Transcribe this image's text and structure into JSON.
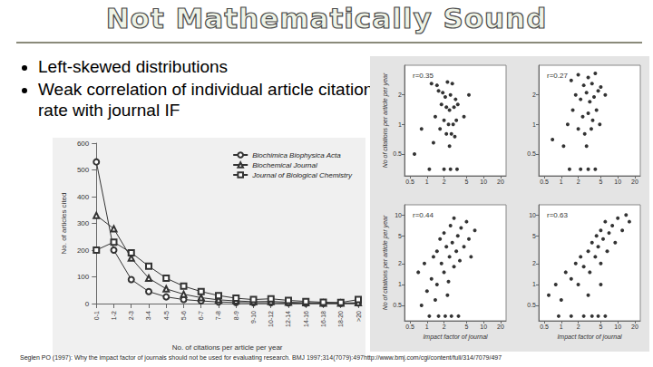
{
  "slide": {
    "title": "Not Mathematically Sound",
    "bullets": [
      "Left-skewed distributions",
      "Weak correlation of individual article citation rate with journal IF"
    ],
    "citation": "Seglen PO (1997): Why the impact factor of journals should not be used for evaluating research. BMJ 1997;314(7079):497http://www.bmj.com/cgi/content/full/314/7079/497"
  },
  "chart_data": [
    {
      "type": "line",
      "x_label": "No. of citations per article per year",
      "y_label": "No. of articles cited",
      "categories": [
        "0-1",
        "1-2",
        "2-3",
        "3-4",
        "4-5",
        "5-6",
        "6-7",
        "7-8",
        "8-9",
        "9-10",
        "10-12",
        "12-14",
        "14-16",
        "16-18",
        "18-20",
        ">20"
      ],
      "series": [
        {
          "name": "Biochimica Biophysica Acta",
          "color": "#333333",
          "marker": "circle",
          "values": [
            530,
            200,
            90,
            45,
            25,
            15,
            10,
            6,
            4,
            3,
            3,
            2,
            1,
            1,
            1,
            2
          ]
        },
        {
          "name": "Biochemical Journal",
          "color": "#333333",
          "marker": "triangle",
          "values": [
            330,
            280,
            170,
            95,
            55,
            35,
            22,
            14,
            10,
            7,
            8,
            5,
            3,
            2,
            2,
            3
          ]
        },
        {
          "name": "Journal of Biological Chemistry",
          "color": "#333333",
          "marker": "square",
          "values": [
            200,
            230,
            190,
            140,
            95,
            65,
            45,
            30,
            20,
            15,
            18,
            12,
            8,
            5,
            4,
            15
          ]
        }
      ],
      "ylim": [
        0,
        600
      ],
      "yticks": [
        0,
        100,
        200,
        300,
        400,
        500,
        600
      ],
      "legend": "top-right",
      "grid": false
    },
    {
      "type": "scatter",
      "annotation": "r=0.35",
      "y_label": "No of citations per article per year",
      "log": true,
      "color": "#000000",
      "marker": "circle",
      "grid": false,
      "xlim": [
        0.4,
        25
      ],
      "xticks": [
        0.5,
        1,
        2,
        5,
        10,
        20
      ],
      "ylim": [
        0.3,
        4
      ],
      "yticks": [
        0.5,
        1,
        2
      ],
      "points": [
        [
          1.2,
          2.6
        ],
        [
          1.5,
          2.5
        ],
        [
          2.3,
          2.7
        ],
        [
          2.8,
          2.6
        ],
        [
          1.6,
          2.2
        ],
        [
          1.9,
          2.1
        ],
        [
          2.1,
          1.9
        ],
        [
          2.6,
          2.0
        ],
        [
          3.2,
          1.8
        ],
        [
          1.8,
          1.6
        ],
        [
          2.2,
          1.5
        ],
        [
          2.5,
          1.4
        ],
        [
          3.0,
          1.5
        ],
        [
          3.5,
          1.6
        ],
        [
          1.4,
          1.2
        ],
        [
          2.0,
          1.1
        ],
        [
          2.4,
          1.0
        ],
        [
          2.9,
          1.0
        ],
        [
          3.3,
          1.1
        ],
        [
          1.7,
          0.9
        ],
        [
          2.2,
          0.8
        ],
        [
          2.7,
          0.8
        ],
        [
          3.1,
          0.75
        ],
        [
          0.8,
          0.9
        ],
        [
          1.3,
          0.65
        ],
        [
          2.5,
          0.6
        ],
        [
          0.6,
          0.5
        ],
        [
          4.5,
          1.2
        ],
        [
          5.5,
          2.0
        ],
        [
          1.1,
          0.35
        ],
        [
          2.0,
          0.35
        ],
        [
          2.6,
          0.35
        ],
        [
          3.4,
          0.35
        ]
      ]
    },
    {
      "type": "scatter",
      "annotation": "r=0.27",
      "log": true,
      "color": "#000000",
      "marker": "circle",
      "grid": false,
      "xlim": [
        0.4,
        25
      ],
      "xticks": [
        0.5,
        1,
        2,
        5,
        10,
        20
      ],
      "ylim": [
        0.3,
        4
      ],
      "yticks": [
        0.5,
        1,
        2
      ],
      "points": [
        [
          1.5,
          2.8
        ],
        [
          2.0,
          3.2
        ],
        [
          2.5,
          2.5
        ],
        [
          3.0,
          3.0
        ],
        [
          3.5,
          2.6
        ],
        [
          4.0,
          3.3
        ],
        [
          4.5,
          2.2
        ],
        [
          1.8,
          2.0
        ],
        [
          2.2,
          1.8
        ],
        [
          2.8,
          2.1
        ],
        [
          3.2,
          1.7
        ],
        [
          3.8,
          1.9
        ],
        [
          5.0,
          2.4
        ],
        [
          6.0,
          2.0
        ],
        [
          1.6,
          1.4
        ],
        [
          2.4,
          1.2
        ],
        [
          3.0,
          1.3
        ],
        [
          3.6,
          1.1
        ],
        [
          4.2,
          1.4
        ],
        [
          1.3,
          1.0
        ],
        [
          2.0,
          0.9
        ],
        [
          2.6,
          0.8
        ],
        [
          3.4,
          0.9
        ],
        [
          4.8,
          1.0
        ],
        [
          1.1,
          0.6
        ],
        [
          2.8,
          0.6
        ],
        [
          0.7,
          0.7
        ],
        [
          1.4,
          0.35
        ],
        [
          2.2,
          0.35
        ],
        [
          3.0,
          0.35
        ],
        [
          4.0,
          0.35
        ]
      ]
    },
    {
      "type": "scatter",
      "annotation": "r=0.44",
      "x_label": "Impact factor of journal",
      "y_label": "No of citations per article per year",
      "log": true,
      "color": "#000000",
      "marker": "circle",
      "grid": false,
      "xlim": [
        0.4,
        25
      ],
      "xticks": [
        0.5,
        1,
        2,
        5,
        10,
        20
      ],
      "ylim": [
        0.3,
        14
      ],
      "yticks": [
        0.5,
        1,
        2,
        5,
        10
      ],
      "points": [
        [
          0.7,
          1.5
        ],
        [
          0.9,
          2.0
        ],
        [
          1.0,
          0.8
        ],
        [
          1.2,
          1.2
        ],
        [
          1.3,
          2.5
        ],
        [
          1.5,
          3.0
        ],
        [
          1.5,
          1.0
        ],
        [
          1.7,
          4.5
        ],
        [
          1.8,
          2.0
        ],
        [
          2.0,
          1.5
        ],
        [
          2.0,
          5.5
        ],
        [
          2.2,
          3.5
        ],
        [
          2.3,
          0.7
        ],
        [
          2.5,
          2.5
        ],
        [
          2.6,
          7.0
        ],
        [
          2.8,
          4.0
        ],
        [
          3.0,
          1.8
        ],
        [
          3.0,
          9.0
        ],
        [
          3.3,
          3.0
        ],
        [
          3.5,
          5.0
        ],
        [
          3.8,
          2.2
        ],
        [
          4.0,
          6.5
        ],
        [
          4.5,
          3.5
        ],
        [
          5.0,
          8.0
        ],
        [
          5.5,
          4.5
        ],
        [
          6.0,
          2.5
        ],
        [
          7.0,
          6.0
        ],
        [
          0.8,
          0.5
        ],
        [
          1.4,
          0.6
        ],
        [
          2.4,
          1.1
        ],
        [
          1.1,
          0.35
        ],
        [
          1.6,
          0.35
        ],
        [
          2.1,
          0.35
        ],
        [
          2.7,
          0.35
        ],
        [
          3.6,
          0.35
        ]
      ]
    },
    {
      "type": "scatter",
      "annotation": "r=0.63",
      "x_label": "Impact factor of journal",
      "log": true,
      "color": "#000000",
      "marker": "circle",
      "grid": false,
      "xlim": [
        0.4,
        25
      ],
      "xticks": [
        0.5,
        1,
        2,
        5,
        10,
        20
      ],
      "ylim": [
        0.3,
        14
      ],
      "yticks": [
        0.5,
        1,
        2,
        5,
        10
      ],
      "points": [
        [
          0.6,
          0.7
        ],
        [
          0.8,
          1.0
        ],
        [
          1.0,
          0.6
        ],
        [
          1.2,
          1.5
        ],
        [
          1.5,
          1.2
        ],
        [
          1.8,
          2.0
        ],
        [
          2.0,
          1.0
        ],
        [
          2.2,
          2.5
        ],
        [
          2.5,
          1.8
        ],
        [
          3.0,
          3.0
        ],
        [
          3.2,
          1.5
        ],
        [
          3.5,
          4.0
        ],
        [
          4.0,
          2.5
        ],
        [
          4.2,
          5.0
        ],
        [
          4.5,
          3.5
        ],
        [
          5.0,
          6.0
        ],
        [
          5.0,
          2.0
        ],
        [
          5.5,
          4.5
        ],
        [
          6.0,
          8.0
        ],
        [
          6.5,
          3.0
        ],
        [
          7.0,
          5.5
        ],
        [
          8.0,
          7.0
        ],
        [
          9.0,
          4.0
        ],
        [
          10.0,
          9.0
        ],
        [
          12.0,
          6.0
        ],
        [
          14.0,
          10.0
        ],
        [
          16.0,
          8.0
        ],
        [
          3.0,
          0.7
        ],
        [
          5.0,
          1.0
        ],
        [
          0.9,
          0.35
        ],
        [
          1.5,
          0.35
        ],
        [
          2.5,
          0.35
        ],
        [
          3.5,
          0.35
        ],
        [
          4.5,
          0.35
        ],
        [
          6.0,
          0.35
        ]
      ]
    }
  ]
}
